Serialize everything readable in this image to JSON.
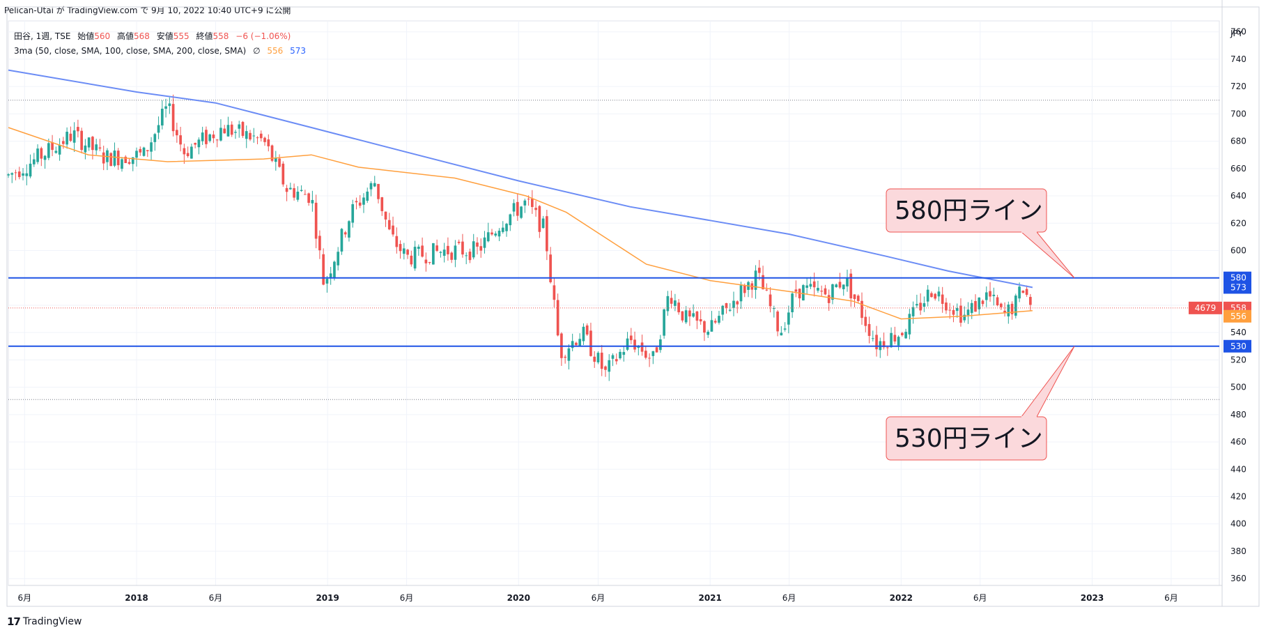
{
  "header": {
    "publish_line": "Pelican-Utai が TradingView.com で 9月 10, 2022 10:40 UTC+9 に公開"
  },
  "legend": {
    "symbol": "田谷, 1週, TSE",
    "open_label": "始値",
    "open_value": "560",
    "high_label": "高値",
    "high_value": "568",
    "low_label": "安値",
    "low_value": "555",
    "close_label": "終値",
    "close_value": "558",
    "change": "−6 (−1.06%)",
    "ma_label": "3ma (50, close, SMA, 100, close, SMA, 200, close, SMA)",
    "ma_symbol": "∅",
    "ma100_value": "556",
    "ma200_value": "573"
  },
  "footer": {
    "brand": "TradingView",
    "logo": "17"
  },
  "colors": {
    "up": "#26a69a",
    "down": "#ef5350",
    "ma100": "#ff9f3d",
    "ma200": "#6b8cf5",
    "hline": "#1e53e5",
    "grid": "#f0f3fa",
    "callout_bg": "#fbd9dc",
    "callout_border": "#ef5350"
  },
  "chart_data": {
    "type": "candlestick",
    "currency": "JPY",
    "ylim": [
      355,
      768
    ],
    "y_ticks": [
      360,
      380,
      400,
      420,
      440,
      460,
      480,
      500,
      520,
      540,
      560,
      580,
      600,
      620,
      640,
      660,
      680,
      700,
      720,
      740,
      760
    ],
    "x_ticks": [
      {
        "date": "2017-06-01",
        "label": "6月"
      },
      {
        "date": "2018-01-01",
        "label": "2018"
      },
      {
        "date": "2018-06-01",
        "label": "6月"
      },
      {
        "date": "2019-01-01",
        "label": "2019"
      },
      {
        "date": "2019-06-01",
        "label": "6月"
      },
      {
        "date": "2020-01-01",
        "label": "2020"
      },
      {
        "date": "2020-06-01",
        "label": "6月"
      },
      {
        "date": "2021-01-01",
        "label": "2021"
      },
      {
        "date": "2021-06-01",
        "label": "6月"
      },
      {
        "date": "2022-01-01",
        "label": "2022"
      },
      {
        "date": "2022-06-01",
        "label": "6月"
      },
      {
        "date": "2023-01-01",
        "label": "2023"
      },
      {
        "date": "2023-06-01",
        "label": "6月"
      }
    ],
    "xlim": [
      "2017-05-01",
      "2023-09-01"
    ],
    "price_key_points": [
      {
        "date": "2017-05-01",
        "price": 655
      },
      {
        "date": "2017-06-15",
        "price": 665
      },
      {
        "date": "2017-09-01",
        "price": 685
      },
      {
        "date": "2017-11-01",
        "price": 668
      },
      {
        "date": "2018-01-15",
        "price": 670
      },
      {
        "date": "2018-03-01",
        "price": 705
      },
      {
        "date": "2018-04-01",
        "price": 672
      },
      {
        "date": "2018-06-15",
        "price": 690
      },
      {
        "date": "2018-09-01",
        "price": 680
      },
      {
        "date": "2018-10-15",
        "price": 645
      },
      {
        "date": "2018-12-01",
        "price": 640
      },
      {
        "date": "2018-12-25",
        "price": 575
      },
      {
        "date": "2019-02-15",
        "price": 628
      },
      {
        "date": "2019-04-01",
        "price": 650
      },
      {
        "date": "2019-05-01",
        "price": 610
      },
      {
        "date": "2019-06-01",
        "price": 595
      },
      {
        "date": "2019-08-15",
        "price": 600
      },
      {
        "date": "2019-10-15",
        "price": 600
      },
      {
        "date": "2019-12-01",
        "price": 622
      },
      {
        "date": "2020-01-15",
        "price": 635
      },
      {
        "date": "2020-02-20",
        "price": 615
      },
      {
        "date": "2020-03-20",
        "price": 525
      },
      {
        "date": "2020-05-01",
        "price": 540
      },
      {
        "date": "2020-06-15",
        "price": 510
      },
      {
        "date": "2020-08-01",
        "price": 535
      },
      {
        "date": "2020-09-15",
        "price": 520
      },
      {
        "date": "2020-10-15",
        "price": 570
      },
      {
        "date": "2020-11-15",
        "price": 550
      },
      {
        "date": "2021-01-01",
        "price": 542
      },
      {
        "date": "2021-03-01",
        "price": 570
      },
      {
        "date": "2021-04-01",
        "price": 582
      },
      {
        "date": "2021-05-15",
        "price": 540
      },
      {
        "date": "2021-06-15",
        "price": 572
      },
      {
        "date": "2021-08-15",
        "price": 568
      },
      {
        "date": "2021-09-15",
        "price": 580
      },
      {
        "date": "2021-11-15",
        "price": 532
      },
      {
        "date": "2022-01-01",
        "price": 540
      },
      {
        "date": "2022-03-01",
        "price": 572
      },
      {
        "date": "2022-05-01",
        "price": 552
      },
      {
        "date": "2022-06-15",
        "price": 568
      },
      {
        "date": "2022-07-15",
        "price": 552
      },
      {
        "date": "2022-08-10",
        "price": 562
      },
      {
        "date": "2022-08-20",
        "price": 575
      },
      {
        "date": "2022-09-09",
        "price": 558
      }
    ],
    "ma100_points": [
      {
        "date": "2017-05-01",
        "price": 690
      },
      {
        "date": "2017-10-01",
        "price": 670
      },
      {
        "date": "2018-03-01",
        "price": 665
      },
      {
        "date": "2018-09-01",
        "price": 667
      },
      {
        "date": "2018-12-01",
        "price": 670
      },
      {
        "date": "2019-03-01",
        "price": 661
      },
      {
        "date": "2019-09-01",
        "price": 653
      },
      {
        "date": "2020-01-15",
        "price": 640
      },
      {
        "date": "2020-04-01",
        "price": 628
      },
      {
        "date": "2020-09-01",
        "price": 590
      },
      {
        "date": "2021-01-01",
        "price": 578
      },
      {
        "date": "2021-06-01",
        "price": 570
      },
      {
        "date": "2021-10-01",
        "price": 563
      },
      {
        "date": "2022-01-01",
        "price": 550
      },
      {
        "date": "2022-05-01",
        "price": 552
      },
      {
        "date": "2022-09-09",
        "price": 556
      }
    ],
    "ma200_points": [
      {
        "date": "2017-05-01",
        "price": 732
      },
      {
        "date": "2018-01-01",
        "price": 716
      },
      {
        "date": "2018-06-01",
        "price": 708
      },
      {
        "date": "2018-12-01",
        "price": 690
      },
      {
        "date": "2019-06-01",
        "price": 672
      },
      {
        "date": "2020-01-01",
        "price": 651
      },
      {
        "date": "2020-08-01",
        "price": 632
      },
      {
        "date": "2021-01-01",
        "price": 622
      },
      {
        "date": "2021-06-01",
        "price": 612
      },
      {
        "date": "2021-12-01",
        "price": 596
      },
      {
        "date": "2022-04-01",
        "price": 585
      },
      {
        "date": "2022-09-09",
        "price": 573
      }
    ],
    "highest_level": 710,
    "lowest_level": 491,
    "horizontal_lines": [
      {
        "price": 580,
        "label": "580"
      },
      {
        "price": 530,
        "label": "530"
      }
    ],
    "price_tags": [
      {
        "price": 573,
        "label": "573",
        "kind": "ma200"
      },
      {
        "price": 558,
        "label": "558",
        "kind": "last",
        "symbol_code": "4679"
      },
      {
        "price": 556,
        "label": "556",
        "kind": "ma100"
      }
    ],
    "annotations": [
      {
        "text": "580円ライン",
        "target_price": 580
      },
      {
        "text": "530円ライン",
        "target_price": 530
      }
    ]
  }
}
